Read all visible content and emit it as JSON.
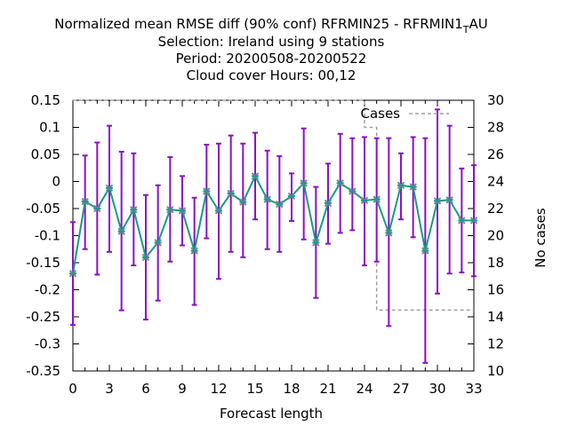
{
  "chart_data": {
    "type": "line",
    "title_lines": [
      "Normalized mean RMSE diff (90% conf) RFRMIN25 - RFRMIN1",
      "Selection: Ireland using     9 stations",
      "Period: 20200508-20200522",
      "Cloud cover   Hours:  00,12"
    ],
    "title_subscript": "T",
    "title_suffix": "AU",
    "xlabel": "Forecast length",
    "ylabel_right": "No cases",
    "xlim": [
      0,
      33
    ],
    "ylim": [
      -0.35,
      0.15
    ],
    "y2lim": [
      10,
      30
    ],
    "x_ticks": [
      "0",
      "3",
      "6",
      "9",
      "12",
      "15",
      "18",
      "21",
      "24",
      "27",
      "30",
      "33"
    ],
    "y_ticks": [
      "-0.35",
      "-0.3",
      "-0.25",
      "-0.2",
      "-0.15",
      "-0.1",
      "-0.05",
      "0",
      "0.05",
      "0.1",
      "0.15"
    ],
    "y2_ticks": [
      "10",
      "12",
      "14",
      "16",
      "18",
      "20",
      "22",
      "24",
      "26",
      "28",
      "30"
    ],
    "series": [
      {
        "name": "",
        "color": "#1a9a80",
        "errorbar_color": "#8a10c8",
        "x": [
          0,
          1,
          2,
          3,
          4,
          5,
          6,
          7,
          8,
          9,
          10,
          11,
          12,
          13,
          14,
          15,
          16,
          17,
          18,
          19,
          20,
          21,
          22,
          23,
          24,
          25,
          26,
          27,
          28,
          29,
          30,
          31,
          32,
          33
        ],
        "y": [
          -0.17,
          -0.037,
          -0.05,
          -0.012,
          -0.092,
          -0.052,
          -0.14,
          -0.113,
          -0.052,
          -0.054,
          -0.128,
          -0.018,
          -0.054,
          -0.022,
          -0.038,
          0.01,
          -0.033,
          -0.042,
          -0.027,
          -0.003,
          -0.113,
          -0.04,
          -0.003,
          -0.018,
          -0.035,
          -0.033,
          -0.095,
          -0.007,
          -0.01,
          -0.128,
          -0.036,
          -0.034,
          -0.072,
          -0.072
        ],
        "lower": [
          -0.265,
          -0.125,
          -0.172,
          -0.13,
          -0.238,
          -0.155,
          -0.255,
          -0.22,
          -0.148,
          -0.118,
          -0.228,
          -0.105,
          -0.18,
          -0.13,
          -0.14,
          -0.07,
          -0.125,
          -0.13,
          -0.073,
          -0.107,
          -0.215,
          -0.115,
          -0.095,
          -0.09,
          -0.155,
          -0.148,
          -0.267,
          -0.07,
          -0.103,
          -0.335,
          -0.207,
          -0.17,
          -0.168,
          -0.175
        ],
        "upper": [
          -0.075,
          0.048,
          0.072,
          0.103,
          0.055,
          0.052,
          -0.025,
          -0.007,
          0.045,
          0.01,
          -0.03,
          0.068,
          0.07,
          0.085,
          0.07,
          0.09,
          0.057,
          0.047,
          0.015,
          0.098,
          -0.01,
          0.033,
          0.088,
          0.08,
          0.082,
          0.08,
          0.08,
          0.052,
          0.082,
          0.08,
          0.133,
          0.103,
          0.024,
          0.03
        ]
      },
      {
        "name": "Cases",
        "color": "#a0a0a0",
        "axis": "right",
        "x": [
          0,
          24,
          24,
          25,
          25,
          33
        ],
        "y": [
          30,
          30,
          28,
          28,
          14.5,
          14.5
        ]
      }
    ],
    "legend": {
      "position": "top-right",
      "entries": [
        "Cases"
      ]
    },
    "grid": false
  }
}
